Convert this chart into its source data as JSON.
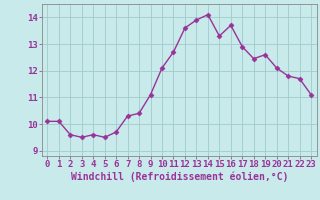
{
  "x": [
    0,
    1,
    2,
    3,
    4,
    5,
    6,
    7,
    8,
    9,
    10,
    11,
    12,
    13,
    14,
    15,
    16,
    17,
    18,
    19,
    20,
    21,
    22,
    23
  ],
  "y": [
    10.1,
    10.1,
    9.6,
    9.5,
    9.6,
    9.5,
    9.7,
    10.3,
    10.4,
    11.1,
    12.1,
    12.7,
    13.6,
    13.9,
    14.1,
    13.3,
    13.7,
    12.9,
    12.45,
    12.6,
    12.1,
    11.8,
    11.7,
    11.1
  ],
  "line_color": "#993399",
  "marker": "D",
  "marker_size": 2.5,
  "line_width": 1.0,
  "bg_color": "#c8eaea",
  "grid_color": "#a0cccc",
  "xlabel": "Windchill (Refroidissement éolien,°C)",
  "xlabel_color": "#993399",
  "tick_color": "#993399",
  "ylim": [
    8.8,
    14.5
  ],
  "yticks": [
    9,
    10,
    11,
    12,
    13,
    14
  ],
  "xticks": [
    0,
    1,
    2,
    3,
    4,
    5,
    6,
    7,
    8,
    9,
    10,
    11,
    12,
    13,
    14,
    15,
    16,
    17,
    18,
    19,
    20,
    21,
    22,
    23
  ],
  "xlabel_fontsize": 7.0,
  "tick_fontsize": 6.5
}
